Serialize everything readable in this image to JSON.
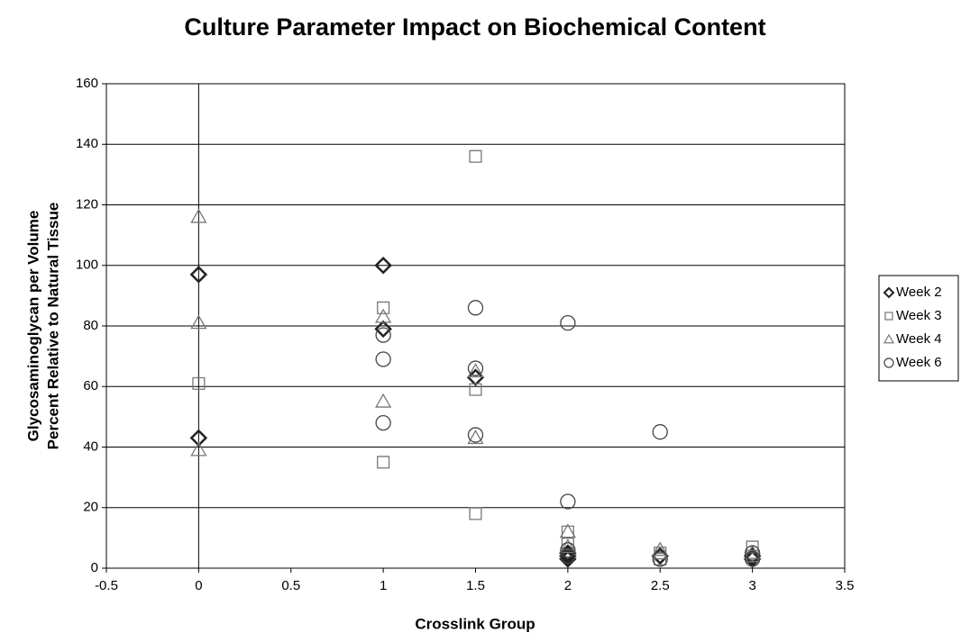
{
  "chart_data": {
    "type": "scatter",
    "title": "Culture Parameter Impact on Biochemical Content",
    "x_label": "Crosslink Group",
    "y_label": [
      "Glycosaminoglycan per Volume",
      "Percent Relative to Natural Tissue"
    ],
    "xlim": [
      -0.5,
      3.5
    ],
    "xticks": [
      -0.5,
      0,
      0.5,
      1,
      1.5,
      2,
      2.5,
      3,
      3.5
    ],
    "ylim": [
      0,
      160
    ],
    "yticks": [
      0,
      20,
      40,
      60,
      80,
      100,
      120,
      140,
      160
    ],
    "grid": true,
    "legend": "right",
    "series": [
      {
        "name": "Week 2",
        "marker": "diamond",
        "color": "#222222",
        "x": [
          0,
          0,
          1,
          1,
          1.5,
          2,
          2,
          2,
          2.5,
          3,
          3
        ],
        "values": [
          97,
          43,
          100,
          79,
          63,
          5,
          4,
          3,
          4,
          4,
          3
        ]
      },
      {
        "name": "Week 3",
        "marker": "square",
        "color": "#777777",
        "x": [
          0,
          1,
          1,
          1.5,
          1.5,
          1.5,
          2,
          2,
          2.5,
          2.5,
          3,
          3
        ],
        "values": [
          61,
          86,
          35,
          136,
          59,
          18,
          12,
          8,
          5,
          3,
          7,
          4
        ]
      },
      {
        "name": "Week 4",
        "marker": "triangle",
        "color": "#777777",
        "x": [
          0,
          0,
          0,
          1,
          1,
          1.5,
          1.5,
          2,
          2,
          2.5,
          3
        ],
        "values": [
          116,
          81,
          39,
          83,
          55,
          65,
          43,
          12,
          7,
          6,
          5
        ]
      },
      {
        "name": "Week 6",
        "marker": "circle",
        "color": "#444444",
        "x": [
          1,
          1,
          1,
          1.5,
          1.5,
          1.5,
          2,
          2,
          2,
          2,
          2.5,
          2.5,
          3,
          3
        ],
        "values": [
          77,
          69,
          48,
          86,
          66,
          44,
          81,
          22,
          6,
          4,
          45,
          3,
          5,
          3
        ]
      }
    ]
  }
}
